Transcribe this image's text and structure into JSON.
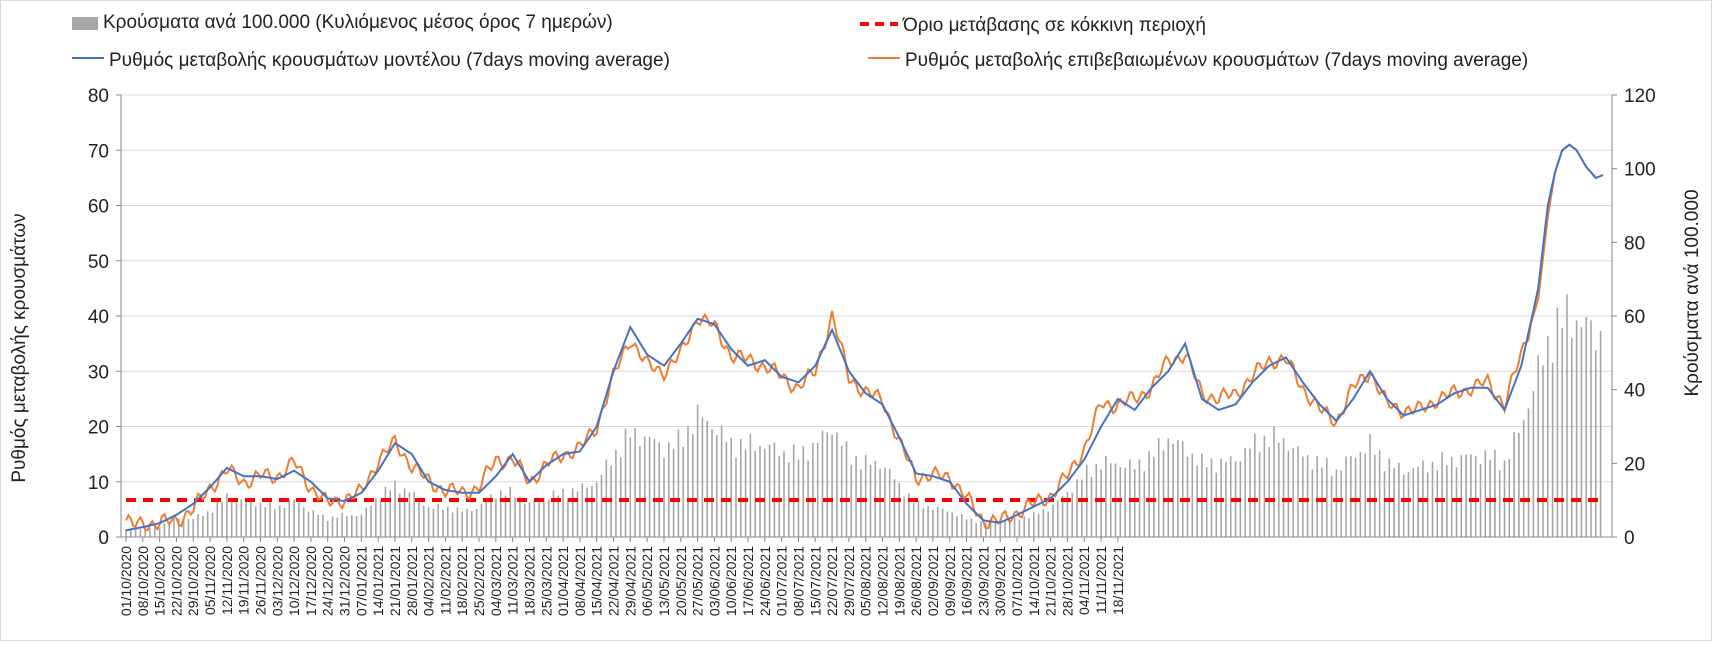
{
  "chart_data": {
    "type": "line",
    "legend": [
      {
        "key": "bars",
        "label": "Κρούσματα ανά 100.000 (Κυλιόμενος μέσος όρος 7 ημερών)",
        "color": "#a6a6a6",
        "style": "bar"
      },
      {
        "key": "threshold",
        "label": "Όριο μετάβασης σε κόκκινη περιοχή",
        "color": "#ff0000",
        "style": "dashed"
      },
      {
        "key": "model",
        "label": "Ρυθμός μεταβολής κρουσμάτων μοντέλου (7days moving average)",
        "color": "#4472c4",
        "style": "line"
      },
      {
        "key": "confirmed",
        "label": "Ρυθμός μεταβολής επιβεβαιωμένων κρουσμάτων (7days moving average)",
        "color": "#ed7d31",
        "style": "line"
      }
    ],
    "ylabel_left": "Ρυθμός μεταβολής κρουσμάτων",
    "ylabel_right": "Κρούσματα ανά 100.000",
    "ylim_left": [
      0,
      80
    ],
    "yticks_left": [
      "0",
      "10",
      "20",
      "30",
      "40",
      "50",
      "60",
      "70",
      "80"
    ],
    "ylim_right": [
      0,
      120
    ],
    "yticks_right": [
      "0",
      "20",
      "40",
      "60",
      "80",
      "100",
      "120"
    ],
    "days": 423,
    "x_tick_labels": [
      "01/10/2020",
      "08/10/2020",
      "15/10/2020",
      "22/10/2020",
      "29/10/2020",
      "05/11/2020",
      "12/11/2020",
      "19/11/2020",
      "26/11/2020",
      "03/12/2020",
      "10/12/2020",
      "17/12/2020",
      "24/12/2020",
      "31/12/2020",
      "07/01/2021",
      "14/01/2021",
      "21/01/2021",
      "28/01/2021",
      "04/02/2021",
      "11/02/2021",
      "18/02/2021",
      "25/02/2021",
      "04/03/2021",
      "11/03/2021",
      "18/03/2021",
      "25/03/2021",
      "01/04/2021",
      "08/04/2021",
      "15/04/2021",
      "22/04/2021",
      "29/04/2021",
      "06/05/2021",
      "13/05/2021",
      "20/05/2021",
      "27/05/2021",
      "03/06/2021",
      "10/06/2021",
      "17/06/2021",
      "24/06/2021",
      "01/07/2021",
      "08/07/2021",
      "15/07/2021",
      "22/07/2021",
      "29/07/2021",
      "05/08/2021",
      "12/08/2021",
      "19/08/2021",
      "26/08/2021",
      "02/09/2021",
      "09/09/2021",
      "16/09/2021",
      "23/09/2021",
      "30/09/2021",
      "07/10/2021",
      "14/10/2021",
      "21/10/2021",
      "28/10/2021",
      "04/11/2021",
      "11/11/2021",
      "18/11/2021"
    ],
    "threshold_value": 6.7,
    "model_series": [
      [
        0,
        1.2
      ],
      [
        7,
        1.8
      ],
      [
        14,
        2.5
      ],
      [
        21,
        4
      ],
      [
        28,
        6
      ],
      [
        35,
        9
      ],
      [
        42,
        12.5
      ],
      [
        49,
        11
      ],
      [
        56,
        11
      ],
      [
        63,
        10.5
      ],
      [
        70,
        12
      ],
      [
        77,
        10
      ],
      [
        84,
        7
      ],
      [
        91,
        6.5
      ],
      [
        98,
        8
      ],
      [
        105,
        12
      ],
      [
        112,
        17
      ],
      [
        119,
        15
      ],
      [
        126,
        10
      ],
      [
        133,
        8.5
      ],
      [
        140,
        8
      ],
      [
        147,
        8
      ],
      [
        154,
        11
      ],
      [
        161,
        15
      ],
      [
        168,
        10
      ],
      [
        175,
        13
      ],
      [
        182,
        15
      ],
      [
        189,
        15.5
      ],
      [
        196,
        20
      ],
      [
        203,
        30
      ],
      [
        210,
        38
      ],
      [
        217,
        33
      ],
      [
        224,
        31
      ],
      [
        231,
        35
      ],
      [
        238,
        39.5
      ],
      [
        245,
        38.5
      ],
      [
        252,
        34
      ],
      [
        259,
        31
      ],
      [
        266,
        32
      ],
      [
        273,
        29
      ],
      [
        280,
        28
      ],
      [
        287,
        31
      ],
      [
        294,
        37.5
      ],
      [
        301,
        30
      ],
      [
        308,
        26
      ],
      [
        315,
        24
      ],
      [
        322,
        18
      ],
      [
        329,
        11.5
      ],
      [
        336,
        11
      ],
      [
        343,
        10
      ],
      [
        350,
        6
      ],
      [
        357,
        3
      ],
      [
        364,
        2.6
      ],
      [
        371,
        4
      ],
      [
        378,
        5.5
      ],
      [
        385,
        7
      ],
      [
        392,
        10
      ],
      [
        399,
        14
      ],
      [
        406,
        20
      ],
      [
        413,
        25
      ],
      [
        420,
        23
      ],
      [
        427,
        27
      ],
      [
        434,
        30
      ],
      [
        441,
        35
      ],
      [
        448,
        25
      ],
      [
        455,
        23
      ],
      [
        462,
        24
      ],
      [
        469,
        28
      ],
      [
        476,
        31
      ],
      [
        483,
        32.5
      ],
      [
        490,
        28
      ],
      [
        497,
        24
      ],
      [
        504,
        21
      ],
      [
        511,
        25
      ],
      [
        518,
        30
      ],
      [
        525,
        25
      ],
      [
        532,
        22
      ],
      [
        539,
        23
      ],
      [
        546,
        24
      ],
      [
        553,
        26
      ],
      [
        560,
        27
      ],
      [
        567,
        27
      ],
      [
        574,
        23
      ],
      [
        581,
        31
      ],
      [
        588,
        45
      ],
      [
        592,
        60
      ],
      [
        595,
        66
      ],
      [
        598,
        70
      ],
      [
        601,
        71
      ],
      [
        604,
        70
      ],
      [
        608,
        67
      ],
      [
        612,
        65
      ],
      [
        615,
        65.5
      ]
    ],
    "confirmed_series": [
      [
        0,
        3
      ],
      [
        3,
        2
      ],
      [
        7,
        2.5
      ],
      [
        14,
        2.5
      ],
      [
        21,
        3
      ],
      [
        28,
        5
      ],
      [
        35,
        9
      ],
      [
        42,
        12
      ],
      [
        49,
        10
      ],
      [
        56,
        11
      ],
      [
        63,
        11
      ],
      [
        70,
        13.5
      ],
      [
        77,
        9
      ],
      [
        84,
        6
      ],
      [
        91,
        7
      ],
      [
        98,
        8
      ],
      [
        105,
        14
      ],
      [
        112,
        17
      ],
      [
        119,
        13
      ],
      [
        126,
        10
      ],
      [
        133,
        8.5
      ],
      [
        140,
        8
      ],
      [
        147,
        9
      ],
      [
        154,
        14
      ],
      [
        161,
        14
      ],
      [
        168,
        10
      ],
      [
        175,
        13
      ],
      [
        182,
        15
      ],
      [
        189,
        16
      ],
      [
        196,
        20
      ],
      [
        203,
        29
      ],
      [
        210,
        36
      ],
      [
        217,
        31
      ],
      [
        224,
        30
      ],
      [
        231,
        33
      ],
      [
        238,
        40
      ],
      [
        245,
        38
      ],
      [
        252,
        33
      ],
      [
        259,
        32
      ],
      [
        266,
        31
      ],
      [
        273,
        29
      ],
      [
        280,
        27
      ],
      [
        287,
        30
      ],
      [
        294,
        40
      ],
      [
        301,
        29
      ],
      [
        308,
        26
      ],
      [
        315,
        25
      ],
      [
        322,
        17
      ],
      [
        329,
        11
      ],
      [
        336,
        11
      ],
      [
        343,
        11
      ],
      [
        350,
        7
      ],
      [
        357,
        3
      ],
      [
        364,
        2.8
      ],
      [
        371,
        4.5
      ],
      [
        378,
        6
      ],
      [
        385,
        7.5
      ],
      [
        392,
        11
      ],
      [
        399,
        16
      ],
      [
        406,
        24
      ],
      [
        413,
        24
      ],
      [
        420,
        25
      ],
      [
        427,
        27
      ],
      [
        434,
        32
      ],
      [
        441,
        33
      ],
      [
        448,
        26
      ],
      [
        455,
        25
      ],
      [
        462,
        26
      ],
      [
        469,
        29
      ],
      [
        476,
        32
      ],
      [
        483,
        32
      ],
      [
        490,
        27
      ],
      [
        497,
        23
      ],
      [
        504,
        21
      ],
      [
        511,
        27
      ],
      [
        518,
        30
      ],
      [
        525,
        24
      ],
      [
        532,
        23
      ],
      [
        539,
        23
      ],
      [
        546,
        25
      ],
      [
        553,
        26
      ],
      [
        560,
        27
      ],
      [
        567,
        28
      ],
      [
        574,
        24
      ],
      [
        581,
        33
      ],
      [
        588,
        43
      ],
      [
        592,
        58
      ],
      [
        595,
        66
      ],
      [
        598,
        70
      ],
      [
        601,
        71
      ],
      [
        604,
        70
      ],
      [
        608,
        67
      ],
      [
        612,
        65
      ],
      [
        615,
        65.5
      ]
    ],
    "bars_series": [
      [
        0,
        2
      ],
      [
        14,
        3
      ],
      [
        21,
        5
      ],
      [
        28,
        5
      ],
      [
        35,
        7
      ],
      [
        42,
        11
      ],
      [
        49,
        10
      ],
      [
        56,
        9
      ],
      [
        63,
        8
      ],
      [
        70,
        10
      ],
      [
        77,
        7
      ],
      [
        84,
        5
      ],
      [
        91,
        6
      ],
      [
        98,
        6
      ],
      [
        105,
        11
      ],
      [
        112,
        14
      ],
      [
        119,
        12
      ],
      [
        126,
        8
      ],
      [
        133,
        8
      ],
      [
        140,
        7
      ],
      [
        147,
        8
      ],
      [
        154,
        12
      ],
      [
        161,
        12
      ],
      [
        168,
        9
      ],
      [
        175,
        11
      ],
      [
        182,
        12
      ],
      [
        189,
        13
      ],
      [
        196,
        15
      ],
      [
        203,
        22
      ],
      [
        210,
        28
      ],
      [
        217,
        27
      ],
      [
        224,
        24
      ],
      [
        231,
        26
      ],
      [
        238,
        33
      ],
      [
        245,
        30
      ],
      [
        252,
        25
      ],
      [
        259,
        25
      ],
      [
        266,
        25
      ],
      [
        273,
        23
      ],
      [
        280,
        22
      ],
      [
        287,
        25
      ],
      [
        294,
        30
      ],
      [
        301,
        22
      ],
      [
        308,
        20
      ],
      [
        315,
        20
      ],
      [
        322,
        14
      ],
      [
        329,
        9
      ],
      [
        336,
        8
      ],
      [
        343,
        7
      ],
      [
        350,
        5
      ],
      [
        357,
        4
      ],
      [
        364,
        4
      ],
      [
        371,
        5
      ],
      [
        378,
        6
      ],
      [
        385,
        8
      ],
      [
        392,
        12
      ],
      [
        399,
        17
      ],
      [
        406,
        20
      ],
      [
        413,
        20
      ],
      [
        420,
        19
      ],
      [
        427,
        22
      ],
      [
        434,
        27
      ],
      [
        441,
        24
      ],
      [
        448,
        20
      ],
      [
        455,
        20
      ],
      [
        462,
        21
      ],
      [
        469,
        25
      ],
      [
        476,
        27
      ],
      [
        483,
        26
      ],
      [
        490,
        22
      ],
      [
        497,
        20
      ],
      [
        504,
        18
      ],
      [
        511,
        22
      ],
      [
        518,
        25
      ],
      [
        525,
        20
      ],
      [
        532,
        18
      ],
      [
        539,
        19
      ],
      [
        546,
        20
      ],
      [
        553,
        21
      ],
      [
        560,
        22
      ],
      [
        567,
        22
      ],
      [
        574,
        20
      ],
      [
        581,
        30
      ],
      [
        588,
        45
      ],
      [
        592,
        52
      ],
      [
        595,
        56
      ],
      [
        598,
        59
      ],
      [
        601,
        60
      ],
      [
        604,
        59
      ],
      [
        608,
        57
      ],
      [
        612,
        55
      ],
      [
        615,
        55
      ]
    ]
  }
}
